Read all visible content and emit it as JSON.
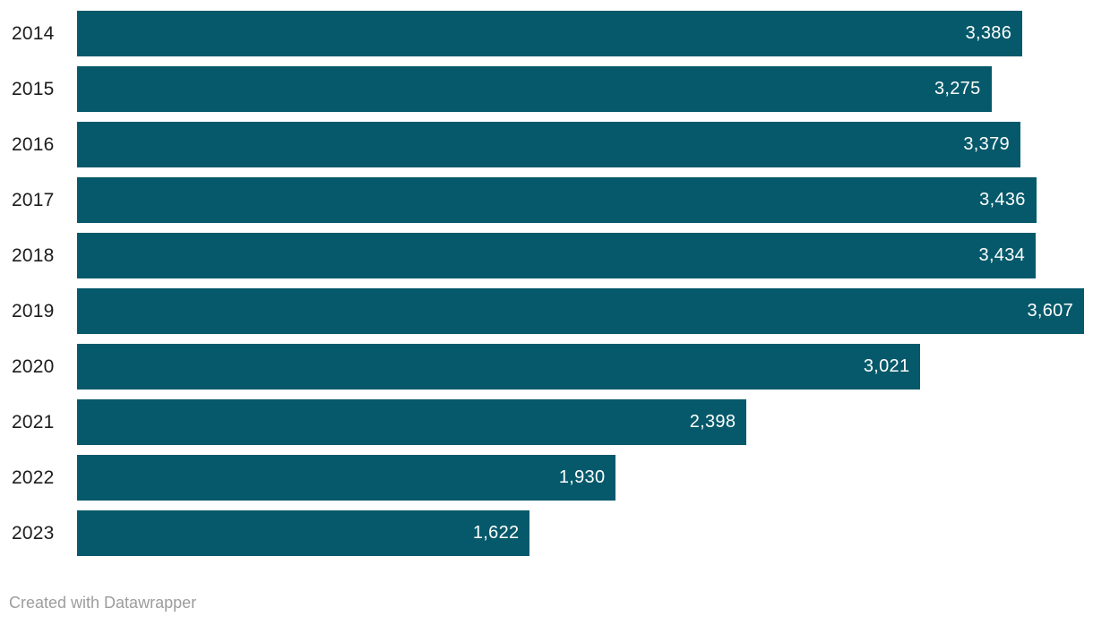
{
  "chart_data": {
    "type": "bar",
    "orientation": "horizontal",
    "categories": [
      "2014",
      "2015",
      "2016",
      "2017",
      "2018",
      "2019",
      "2020",
      "2021",
      "2022",
      "2023"
    ],
    "values": [
      3386,
      3275,
      3379,
      3436,
      3434,
      3607,
      3021,
      2398,
      1930,
      1622
    ],
    "value_labels": [
      "3,386",
      "3,275",
      "3,379",
      "3,436",
      "3,434",
      "3,607",
      "3,021",
      "2,398",
      "1,930",
      "1,622"
    ],
    "xlim": [
      0,
      3607
    ],
    "grid": false,
    "legend": "none",
    "bar_color": "#05596a",
    "category_label_color": "#1d1d1d",
    "value_label_color": "#ffffff"
  },
  "footer": {
    "credit": "Created with Datawrapper",
    "color": "#9d9d9d"
  }
}
